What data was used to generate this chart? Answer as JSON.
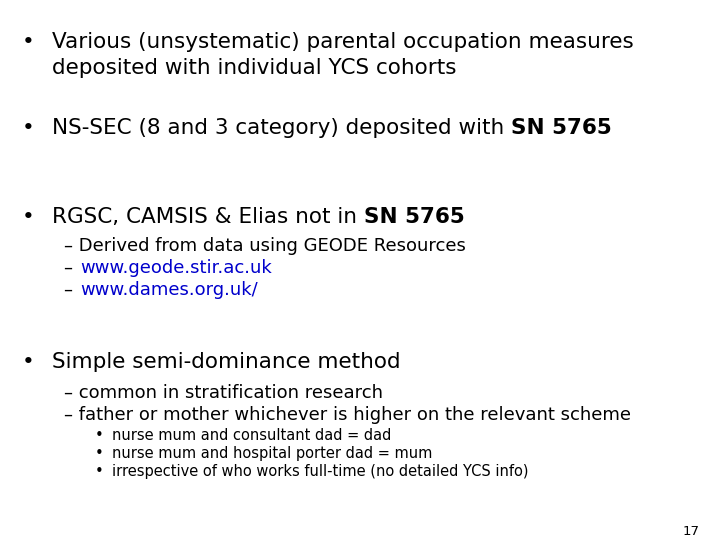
{
  "bg_color": "#ffffff",
  "text_color": "#000000",
  "link_color": "#0000cc",
  "slide_number": "17",
  "bullet1_line1": "Various (unsystematic) parental occupation measures",
  "bullet1_line2": "deposited with individual YCS cohorts",
  "bullet2_normal": "NS-SEC (8 and 3 category) deposited with ",
  "bullet2_bold": "SN 5765",
  "bullet3_normal": "RGSC, CAMSIS & Elias not in ",
  "bullet3_bold": "SN 5765",
  "sub3_1": "Derived from data using GEODE Resources",
  "sub3_2": "www.geode.stir.ac.uk",
  "sub3_3": "www.dames.org.uk/",
  "bullet4": "Simple semi-dominance method",
  "sub4_1": "common in stratification research",
  "sub4_2": "father or mother whichever is higher on the relevant scheme",
  "sub4_sub1": "nurse mum and consultant dad = dad",
  "sub4_sub2": "nurse mum and hospital porter dad = mum",
  "sub4_sub3": "irrespective of who works full-time (no detailed YCS info)",
  "fs_main": 15.5,
  "fs_sub": 13.0,
  "fs_subsub": 10.5,
  "fs_slide_num": 9.5
}
